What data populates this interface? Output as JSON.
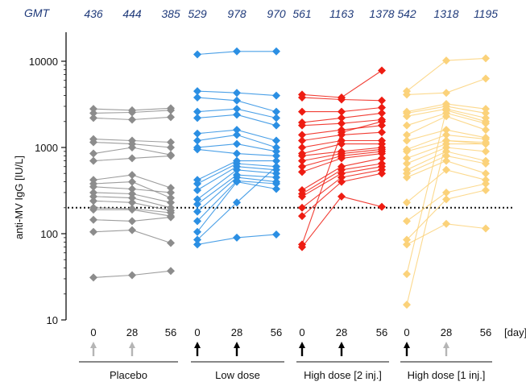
{
  "chart_data": {
    "type": "scatter",
    "ylabel": "anti-MV IgG [IU/L]",
    "y_scale": "log",
    "ylim": [
      10,
      20000
    ],
    "yticks": [
      10,
      100,
      1000,
      10000
    ],
    "ytick_labels": [
      "10",
      "100",
      "1000",
      "10000"
    ],
    "threshold": 200,
    "threshold_style": "dotted",
    "gmt_label": "GMT",
    "x_unit_label": "[day]",
    "groups": [
      {
        "name": "Placebo",
        "color": "#8c8c8c",
        "days": [
          "0",
          "28",
          "56"
        ],
        "gmt": [
          "436",
          "444",
          "385"
        ],
        "arrows": [
          "gray",
          "gray",
          "none"
        ],
        "subjects": [
          [
            2800,
            2700,
            2850
          ],
          [
            2500,
            2550,
            2700
          ],
          [
            2200,
            2100,
            2250
          ],
          [
            1250,
            1200,
            1150
          ],
          [
            1150,
            1100,
            1000
          ],
          [
            850,
            1000,
            820
          ],
          [
            700,
            750,
            800
          ],
          [
            420,
            480,
            340
          ],
          [
            380,
            400,
            260
          ],
          [
            350,
            330,
            300
          ],
          [
            300,
            290,
            230
          ],
          [
            270,
            260,
            200
          ],
          [
            240,
            230,
            185
          ],
          [
            200,
            195,
            175
          ],
          [
            190,
            190,
            160
          ],
          [
            145,
            140,
            155
          ],
          [
            105,
            110,
            78
          ],
          [
            31,
            33,
            37
          ]
        ]
      },
      {
        "name": "Low dose",
        "color": "#2b8fe3",
        "days": [
          "0",
          "28",
          "56"
        ],
        "gmt": [
          "529",
          "978",
          "970"
        ],
        "arrows": [
          "black",
          "black",
          "none"
        ],
        "subjects": [
          [
            12000,
            13000,
            13000
          ],
          [
            4500,
            4300,
            4000
          ],
          [
            3800,
            3500,
            2600
          ],
          [
            2600,
            2800,
            2200
          ],
          [
            2200,
            2400,
            1800
          ],
          [
            1450,
            1600,
            1200
          ],
          [
            1200,
            1400,
            1000
          ],
          [
            1000,
            1100,
            900
          ],
          [
            950,
            850,
            800
          ],
          [
            420,
            700,
            700
          ],
          [
            380,
            650,
            600
          ],
          [
            320,
            600,
            550
          ],
          [
            250,
            550,
            500
          ],
          [
            220,
            480,
            450
          ],
          [
            180,
            450,
            400
          ],
          [
            140,
            410,
            380
          ],
          [
            105,
            400,
            330
          ],
          [
            85,
            230,
            600
          ],
          [
            75,
            90,
            98
          ]
        ]
      },
      {
        "name": "High dose [2 inj.]",
        "color": "#ee1c12",
        "days": [
          "0",
          "28",
          "56"
        ],
        "gmt": [
          "561",
          "1163",
          "1378"
        ],
        "arrows": [
          "black",
          "black",
          "none"
        ],
        "subjects": [
          [
            4100,
            3800,
            7800
          ],
          [
            3800,
            3600,
            3500
          ],
          [
            2600,
            2600,
            2900
          ],
          [
            1950,
            2200,
            2500
          ],
          [
            1800,
            1900,
            2100
          ],
          [
            1400,
            1600,
            1800
          ],
          [
            1200,
            1400,
            1500
          ],
          [
            1000,
            1200,
            1200
          ],
          [
            850,
            1100,
            1100
          ],
          [
            800,
            900,
            1000
          ],
          [
            700,
            850,
            950
          ],
          [
            600,
            800,
            900
          ],
          [
            520,
            750,
            850
          ],
          [
            320,
            600,
            750
          ],
          [
            290,
            550,
            650
          ],
          [
            270,
            500,
            600
          ],
          [
            200,
            450,
            550
          ],
          [
            160,
            400,
            500
          ],
          [
            75,
            1500,
            2000
          ],
          [
            70,
            270,
            205
          ]
        ]
      },
      {
        "name": "High dose [1 inj.]",
        "color": "#fbd27a",
        "days": [
          "0",
          "28",
          "56"
        ],
        "gmt": [
          "542",
          "1318",
          "1195"
        ],
        "arrows": [
          "black",
          "gray",
          "none"
        ],
        "subjects": [
          [
            4500,
            10200,
            10800
          ],
          [
            4100,
            4300,
            6300
          ],
          [
            2600,
            3200,
            2800
          ],
          [
            2500,
            3000,
            2500
          ],
          [
            2300,
            2800,
            2200
          ],
          [
            1800,
            2500,
            1900
          ],
          [
            1400,
            2300,
            1600
          ],
          [
            1200,
            1600,
            1300
          ],
          [
            950,
            1400,
            1250
          ],
          [
            900,
            1200,
            1150
          ],
          [
            750,
            1100,
            1100
          ],
          [
            650,
            1000,
            900
          ],
          [
            550,
            900,
            700
          ],
          [
            500,
            800,
            650
          ],
          [
            450,
            700,
            500
          ],
          [
            230,
            550,
            420
          ],
          [
            140,
            300,
            380
          ],
          [
            85,
            250,
            320
          ],
          [
            75,
            130,
            115
          ],
          [
            34,
            2700,
            2000
          ],
          [
            15,
            1200,
            1100
          ]
        ]
      }
    ]
  }
}
